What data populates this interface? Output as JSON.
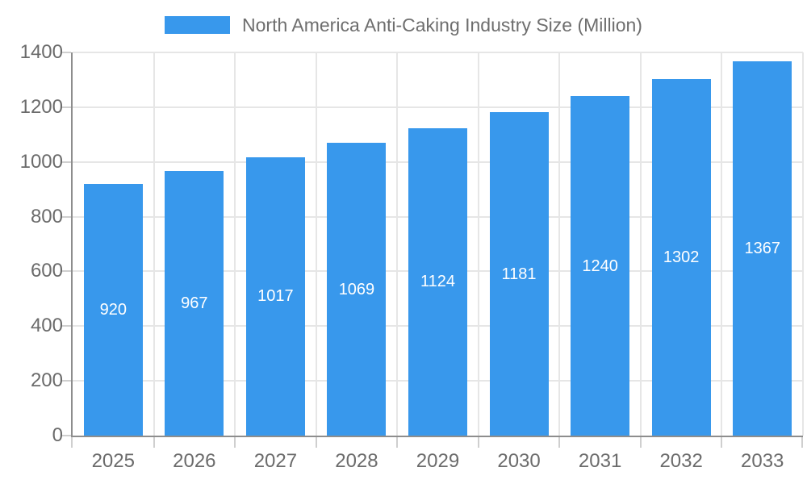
{
  "chart_data": {
    "type": "bar",
    "title": "",
    "categories": [
      "2025",
      "2026",
      "2027",
      "2028",
      "2029",
      "2030",
      "2031",
      "2032",
      "2033"
    ],
    "series": [
      {
        "name": "North America Anti-Caking Industry Size (Million)",
        "values": [
          920,
          967,
          1017,
          1069,
          1124,
          1181,
          1240,
          1302,
          1367
        ]
      }
    ],
    "xlabel": "",
    "ylabel": "",
    "ylim": [
      0,
      1400
    ],
    "yticks": [
      0,
      200,
      400,
      600,
      800,
      1000,
      1200,
      1400
    ],
    "grid": true,
    "legend_position": "top",
    "value_label_position": "inside-center",
    "colors": {
      "bar": "#3898EC",
      "axis_line": "#8d8d8d",
      "gridline": "#e6e6e6",
      "tick": "#cfcfcf",
      "axis_label_text": "#6b6b6b",
      "legend_text": "#6e6e6e",
      "value_label_text": "#ffffff",
      "background": "#ffffff"
    }
  }
}
